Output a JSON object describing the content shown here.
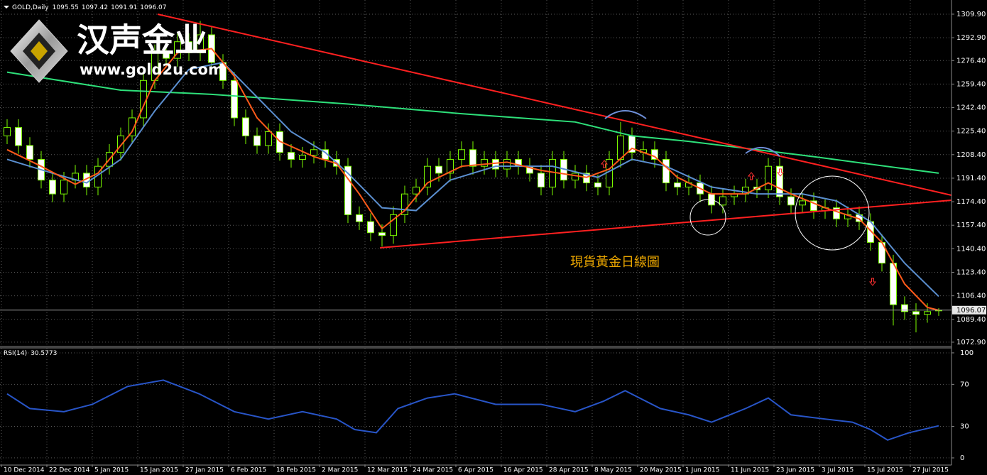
{
  "chart_data": {
    "type": "candlestick",
    "symbol": "GOLD,Daily",
    "logo_text": "汉声金业",
    "logo_url": "www.gold2u.com",
    "annotation": "現貨黃金日線圖",
    "categories": [
      "10 Dec 2014",
      null,
      null,
      null,
      "22 Dec 2014",
      null,
      null,
      null,
      "5 Jan 2015",
      null,
      null,
      null,
      "15 Jan 2015",
      null,
      null,
      null,
      "27 Jan 2015",
      null,
      null,
      null,
      "6 Feb 2015",
      null,
      null,
      null,
      "18 Feb 2015",
      null,
      null,
      null,
      "2 Mar 2015",
      null,
      null,
      null,
      "12 Mar 2015",
      null,
      null,
      null,
      "24 Mar 2015",
      null,
      null,
      null,
      "6 Apr 2015",
      null,
      null,
      null,
      "16 Apr 2015",
      null,
      null,
      null,
      "28 Apr 2015",
      null,
      null,
      null,
      "8 May 2015",
      null,
      null,
      null,
      "20 May 2015",
      null,
      null,
      null,
      "1 Jun 2015",
      null,
      null,
      null,
      "11 Jun 2015",
      null,
      null,
      null,
      "23 Jun 2015",
      null,
      null,
      null,
      "3 Jul 2015",
      null,
      null,
      null,
      "15 Jul 2015",
      null,
      null,
      null,
      "27 Jul 2015",
      null,
      null
    ],
    "candles": {
      "up_color": "#000000",
      "down_color": "#ffffff",
      "outline_color": "#7cfc00",
      "open": [
        1222,
        1228,
        1215,
        1205,
        1190,
        1180,
        1190,
        1195,
        1185,
        1200,
        1210,
        1222,
        1235,
        1262,
        1282,
        1278,
        1290,
        1282,
        1295,
        1275,
        1262,
        1235,
        1222,
        1215,
        1225,
        1210,
        1205,
        1208,
        1212,
        1205,
        1200,
        1165,
        1160,
        1152,
        1150,
        1165,
        1180,
        1185,
        1200,
        1195,
        1205,
        1212,
        1200,
        1205,
        1198,
        1205,
        1200,
        1195,
        1185,
        1205,
        1190,
        1195,
        1188,
        1185,
        1205,
        1222,
        1210,
        1212,
        1205,
        1188,
        1185,
        1188,
        1180,
        1172,
        1178,
        1180,
        1185,
        1183,
        1200,
        1178,
        1172,
        1175,
        1168,
        1170,
        1162,
        1165,
        1160,
        1145,
        1130,
        1100,
        1095,
        1093,
        1095.55
      ],
      "high": [
        1234,
        1234,
        1221,
        1211,
        1196,
        1196,
        1201,
        1201,
        1206,
        1216,
        1228,
        1241,
        1268,
        1288,
        1288,
        1296,
        1296,
        1305,
        1301,
        1281,
        1268,
        1241,
        1228,
        1231,
        1231,
        1216,
        1214,
        1218,
        1218,
        1211,
        1206,
        1171,
        1166,
        1158,
        1171,
        1186,
        1191,
        1206,
        1206,
        1211,
        1218,
        1218,
        1211,
        1211,
        1211,
        1211,
        1206,
        1201,
        1211,
        1211,
        1201,
        1201,
        1194,
        1211,
        1232,
        1228,
        1218,
        1218,
        1211,
        1194,
        1194,
        1194,
        1186,
        1184,
        1186,
        1191,
        1191,
        1206,
        1206,
        1184,
        1181,
        1181,
        1176,
        1176,
        1171,
        1171,
        1166,
        1151,
        1136,
        1106,
        1101,
        1101,
        1097.42
      ],
      "low": [
        1216,
        1209,
        1199,
        1184,
        1174,
        1174,
        1184,
        1179,
        1179,
        1194,
        1204,
        1216,
        1229,
        1256,
        1272,
        1272,
        1276,
        1276,
        1269,
        1256,
        1229,
        1216,
        1209,
        1209,
        1204,
        1199,
        1199,
        1202,
        1199,
        1194,
        1159,
        1154,
        1146,
        1142,
        1144,
        1159,
        1174,
        1179,
        1189,
        1189,
        1199,
        1194,
        1194,
        1192,
        1192,
        1194,
        1189,
        1179,
        1179,
        1184,
        1184,
        1182,
        1179,
        1179,
        1199,
        1204,
        1204,
        1199,
        1182,
        1179,
        1179,
        1174,
        1166,
        1166,
        1172,
        1174,
        1177,
        1177,
        1172,
        1166,
        1166,
        1162,
        1162,
        1156,
        1156,
        1154,
        1139,
        1124,
        1085,
        1089,
        1080,
        1087,
        1091.91
      ],
      "close": [
        1228,
        1215,
        1205,
        1190,
        1180,
        1190,
        1195,
        1185,
        1200,
        1210,
        1222,
        1235,
        1262,
        1282,
        1278,
        1290,
        1282,
        1295,
        1275,
        1262,
        1235,
        1222,
        1215,
        1225,
        1210,
        1205,
        1208,
        1212,
        1205,
        1200,
        1165,
        1160,
        1152,
        1150,
        1165,
        1180,
        1185,
        1200,
        1195,
        1205,
        1212,
        1200,
        1205,
        1198,
        1205,
        1200,
        1195,
        1185,
        1205,
        1190,
        1195,
        1188,
        1185,
        1205,
        1222,
        1210,
        1212,
        1205,
        1188,
        1185,
        1188,
        1180,
        1172,
        1178,
        1180,
        1185,
        1183,
        1200,
        1178,
        1172,
        1175,
        1168,
        1170,
        1162,
        1165,
        1160,
        1145,
        1130,
        1100,
        1095,
        1093,
        1095,
        1096.07
      ]
    },
    "series": [
      {
        "color": "#ff5a1a",
        "x": [
          0,
          3,
          6,
          8,
          11,
          13,
          15,
          18,
          20,
          22,
          24,
          27,
          29,
          31,
          33,
          35,
          37,
          40,
          44,
          47,
          51,
          53,
          55,
          57,
          59,
          62,
          65,
          67,
          69,
          72,
          75,
          77,
          79,
          81,
          82
        ],
        "values": [
          1212,
          1200,
          1187,
          1195,
          1225,
          1262,
          1282,
          1285,
          1265,
          1235,
          1218,
          1207,
          1202,
          1180,
          1155,
          1168,
          1188,
          1200,
          1203,
          1197,
          1192,
          1198,
          1213,
          1207,
          1192,
          1180,
          1180,
          1188,
          1180,
          1170,
          1162,
          1145,
          1115,
          1098,
          1096
        ]
      },
      {
        "color": "#5b8fd0",
        "x": [
          0,
          4,
          7,
          10,
          13,
          16,
          19,
          22,
          25,
          28,
          30,
          33,
          36,
          39,
          43,
          48,
          52,
          55,
          58,
          62,
          66,
          70,
          73,
          76,
          79,
          82
        ],
        "values": [
          1205,
          1195,
          1188,
          1205,
          1240,
          1270,
          1275,
          1250,
          1225,
          1210,
          1195,
          1170,
          1168,
          1190,
          1200,
          1200,
          1192,
          1205,
          1200,
          1185,
          1180,
          1180,
          1175,
          1160,
          1130,
          1106
        ]
      },
      {
        "color": "#2ee07a",
        "x": [
          0,
          10,
          18,
          30,
          40,
          50,
          55,
          60,
          70,
          82
        ],
        "values": [
          1268,
          1255,
          1252,
          1245,
          1238,
          1232,
          1222,
          1218,
          1208,
          1195
        ]
      }
    ],
    "ylim": [
      1070.3,
      1318.6
    ],
    "yticks": [
      {
        "value": 1309.9,
        "label": "1309.90"
      },
      {
        "value": 1292.9,
        "label": "1292.90"
      },
      {
        "value": 1276.4,
        "label": "1276.40"
      },
      {
        "value": 1259.4,
        "label": "1259.40"
      },
      {
        "value": 1242.4,
        "label": "1242.40"
      },
      {
        "value": 1225.4,
        "label": "1225.40"
      },
      {
        "value": 1208.4,
        "label": "1208.40"
      },
      {
        "value": 1191.4,
        "label": "1191.40"
      },
      {
        "value": 1174.4,
        "label": "1174.40"
      },
      {
        "value": 1157.4,
        "label": "1157.40"
      },
      {
        "value": 1140.4,
        "label": "1140.40"
      },
      {
        "value": 1123.4,
        "label": "1123.40"
      },
      {
        "value": 1106.4,
        "label": "1106.40"
      },
      {
        "value": 1089.4,
        "label": "1089.40"
      },
      {
        "value": 1072.9,
        "label": "1072.90"
      }
    ],
    "grid": true,
    "rsi": {
      "name": "RSI(14)",
      "color": "#2855c8",
      "x": [
        0,
        2,
        5,
        7.5,
        10.6,
        13.75,
        16.9,
        20,
        23,
        26,
        29,
        30.6,
        32.5,
        34.4,
        37,
        39.4,
        43,
        47,
        50,
        52.5,
        54.4,
        57.5,
        60,
        62,
        65,
        67,
        69,
        72,
        74.4,
        76,
        77.5,
        79.4,
        82
      ],
      "values": [
        61,
        47,
        44,
        51,
        68,
        74,
        61,
        44,
        37,
        44,
        37,
        27,
        24,
        47,
        57,
        61,
        51,
        51,
        44,
        54,
        64,
        47,
        41,
        34,
        47,
        57,
        41,
        37,
        34,
        27,
        17,
        24,
        30.5773
      ],
      "ylim": [
        -6.8,
        104.7
      ],
      "yticks": [
        100,
        70,
        30,
        0
      ]
    }
  }
}
